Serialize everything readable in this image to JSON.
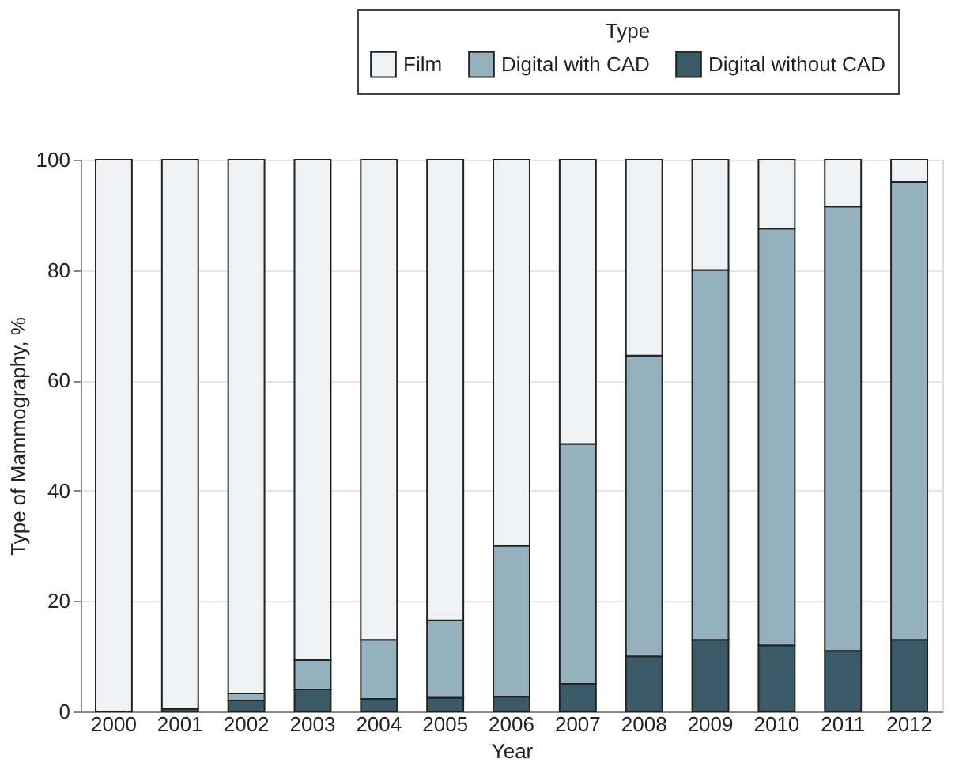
{
  "chart_data": {
    "type": "bar",
    "stacked": true,
    "xlabel": "Year",
    "ylabel": "Type of Mammography, %",
    "legend_title": "Type",
    "categories": [
      "2000",
      "2001",
      "2002",
      "2003",
      "2004",
      "2005",
      "2006",
      "2007",
      "2008",
      "2009",
      "2010",
      "2011",
      "2012"
    ],
    "series": [
      {
        "name": "Digital without CAD",
        "color": "#3a5a68",
        "values": [
          0,
          0.5,
          2,
          4,
          2.3,
          2.5,
          2.7,
          5,
          10,
          13,
          12,
          11,
          13
        ]
      },
      {
        "name": "Digital with CAD",
        "color": "#95b1bd",
        "values": [
          0,
          0,
          1.3,
          5.3,
          10.7,
          14,
          27.3,
          43.5,
          54.5,
          67,
          75.5,
          80.5,
          83
        ]
      },
      {
        "name": "Film",
        "color": "#eef2f5",
        "values": [
          100,
          99.5,
          96.7,
          90.7,
          87,
          83.5,
          70,
          51.5,
          35.5,
          20,
          12.5,
          8.5,
          4
        ]
      }
    ],
    "ylim": [
      0,
      100
    ],
    "yticks": [
      0,
      20,
      40,
      60,
      80,
      100
    ],
    "grid": "y",
    "legend": "top right"
  }
}
